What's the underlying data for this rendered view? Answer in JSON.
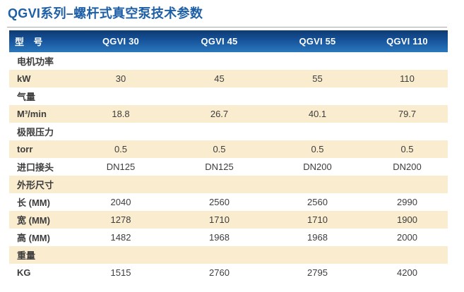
{
  "title": "QGVI系列–螺杆式真空泵技术参数",
  "colors": {
    "title": "#1e5fa6",
    "header_top": "#0e3a72",
    "header_bottom": "#2a78bd",
    "row_alt": "#faecce",
    "text": "#3d3d3d"
  },
  "table": {
    "header": [
      "型　号",
      "QGVI 30",
      "QGVI 45",
      "QGVI 55",
      "QGVI 110"
    ],
    "rows": [
      {
        "label": "电机功率"
      },
      {
        "label": "kW",
        "values": [
          "30",
          "45",
          "55",
          "110"
        ]
      },
      {
        "label": "气量"
      },
      {
        "label": "M³/min",
        "values": [
          "18.8",
          "26.7",
          "40.1",
          "79.7"
        ]
      },
      {
        "label": "极限压力"
      },
      {
        "label": "torr",
        "values": [
          "0.5",
          "0.5",
          "0.5",
          "0.5"
        ]
      },
      {
        "label": "进口接头",
        "values": [
          "DN125",
          "DN125",
          "DN200",
          "DN200"
        ]
      },
      {
        "label": "外形尺寸"
      },
      {
        "label": "长 (MM)",
        "values": [
          "2040",
          "2560",
          "2560",
          "2990"
        ]
      },
      {
        "label": "宽 (MM)",
        "values": [
          "1278",
          "1710",
          "1710",
          "1900"
        ]
      },
      {
        "label": "高 (MM)",
        "values": [
          "1482",
          "1968",
          "1968",
          "2000"
        ]
      },
      {
        "label": "重量"
      },
      {
        "label": "KG",
        "values": [
          "1515",
          "2760",
          "2795",
          "4200"
        ]
      }
    ]
  }
}
